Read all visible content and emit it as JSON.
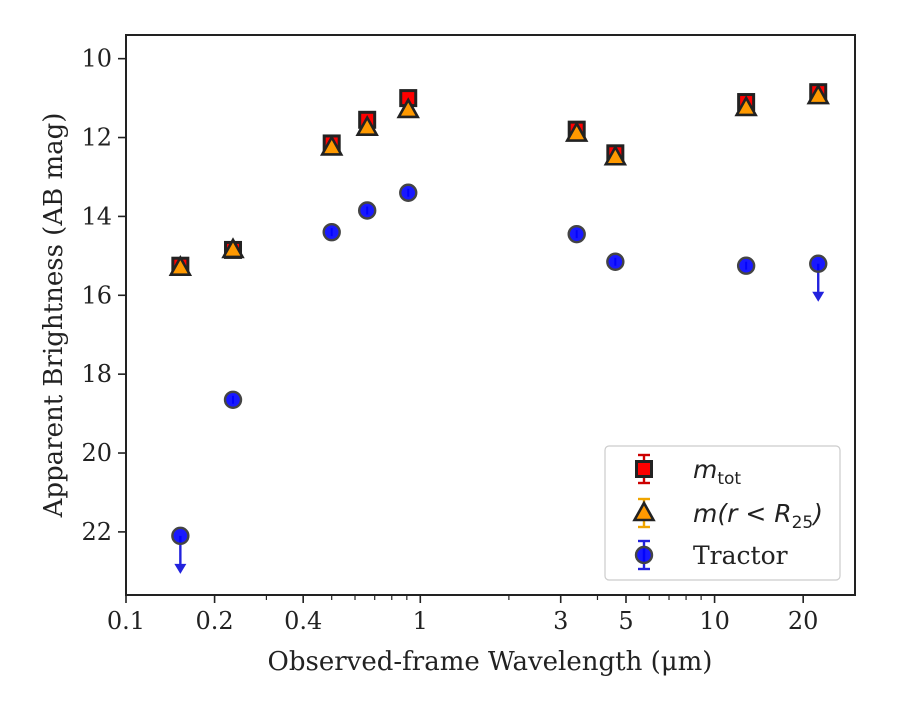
{
  "chart_data": {
    "type": "scatter",
    "xlabel": "Observed-frame Wavelength (μm)",
    "ylabel": "Apparent Brightness (AB mag)",
    "xscale": "log",
    "yaxis_inverted": true,
    "xlim": [
      0.1,
      30
    ],
    "ylim": [
      23.6,
      9.4
    ],
    "x_ticks": [
      0.1,
      0.2,
      0.4,
      1,
      3,
      5,
      10,
      20
    ],
    "x_tick_labels": [
      "0.1",
      "0.2",
      "0.4",
      "1",
      "3",
      "5",
      "10",
      "20"
    ],
    "y_ticks": [
      10,
      12,
      14,
      16,
      18,
      20,
      22
    ],
    "y_tick_labels": [
      "10",
      "12",
      "14",
      "16",
      "18",
      "20",
      "22"
    ],
    "grid": false,
    "legend_position": "lower-right",
    "series": [
      {
        "name": "m_tot",
        "label_main": "m",
        "label_sub": "tot",
        "marker": "square",
        "color": "#ff0000",
        "edge_color": "#222222",
        "errorbar_color": "#cc0000",
        "points": [
          {
            "x": 0.153,
            "y": 15.25
          },
          {
            "x": 0.231,
            "y": 14.85
          },
          {
            "x": 0.5,
            "y": 12.15
          },
          {
            "x": 0.66,
            "y": 11.55
          },
          {
            "x": 0.91,
            "y": 11.0
          },
          {
            "x": 3.4,
            "y": 11.8
          },
          {
            "x": 4.6,
            "y": 12.4
          },
          {
            "x": 12.8,
            "y": 11.1
          },
          {
            "x": 22.5,
            "y": 10.85
          }
        ]
      },
      {
        "name": "m(r<R_25)",
        "label_main": "m(r < R",
        "label_sub": "25",
        "label_end": ")",
        "marker": "triangle",
        "color": "#ff9900",
        "edge_color": "#222222",
        "errorbar_color": "#f0a500",
        "points": [
          {
            "x": 0.153,
            "y": 15.3
          },
          {
            "x": 0.231,
            "y": 14.85
          },
          {
            "x": 0.5,
            "y": 12.25
          },
          {
            "x": 0.66,
            "y": 11.75
          },
          {
            "x": 0.91,
            "y": 11.3
          },
          {
            "x": 3.4,
            "y": 11.9
          },
          {
            "x": 4.6,
            "y": 12.5
          },
          {
            "x": 12.8,
            "y": 11.25
          },
          {
            "x": 22.5,
            "y": 10.95
          }
        ]
      },
      {
        "name": "Tractor",
        "label_main": "Tractor",
        "marker": "circle",
        "color": "#0000ff",
        "edge_color": "#444444",
        "errorbar_color": "#2222dd",
        "points": [
          {
            "x": 0.153,
            "y": 22.1,
            "upper_limit": true
          },
          {
            "x": 0.231,
            "y": 18.65
          },
          {
            "x": 0.5,
            "y": 14.4
          },
          {
            "x": 0.66,
            "y": 13.85
          },
          {
            "x": 0.91,
            "y": 13.4
          },
          {
            "x": 3.4,
            "y": 14.45
          },
          {
            "x": 4.6,
            "y": 15.15
          },
          {
            "x": 12.8,
            "y": 15.25
          },
          {
            "x": 22.5,
            "y": 15.2,
            "upper_limit": true
          }
        ]
      }
    ]
  }
}
